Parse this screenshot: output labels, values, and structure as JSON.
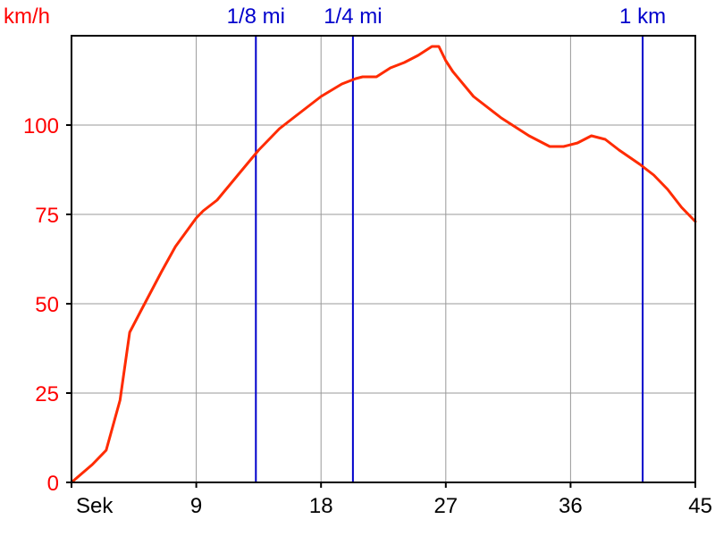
{
  "chart_data": {
    "type": "line",
    "y_unit": "km/h",
    "x_unit_label": "Sek",
    "xlim": [
      0,
      45
    ],
    "ylim": [
      0,
      125
    ],
    "x_ticks": [
      {
        "value": 0,
        "label": "Sek"
      },
      {
        "value": 9,
        "label": "9"
      },
      {
        "value": 18,
        "label": "18"
      },
      {
        "value": 27,
        "label": "27"
      },
      {
        "value": 36,
        "label": "36"
      },
      {
        "value": 45,
        "label": "45"
      }
    ],
    "y_ticks": [
      {
        "value": 0,
        "label": "0"
      },
      {
        "value": 25,
        "label": "25"
      },
      {
        "value": 50,
        "label": "50"
      },
      {
        "value": 75,
        "label": "75"
      },
      {
        "value": 100,
        "label": "100"
      }
    ],
    "grid": true,
    "series": [
      {
        "color": "#ff2b00",
        "points": [
          [
            0,
            0
          ],
          [
            1.5,
            5
          ],
          [
            2.5,
            9
          ],
          [
            3.5,
            23
          ],
          [
            4.2,
            42
          ],
          [
            5,
            48
          ],
          [
            6.5,
            59
          ],
          [
            7.5,
            66
          ],
          [
            9,
            74
          ],
          [
            9.5,
            76
          ],
          [
            10.5,
            79
          ],
          [
            12,
            86
          ],
          [
            13.5,
            93
          ],
          [
            15,
            99
          ],
          [
            16.5,
            103.5
          ],
          [
            18,
            108
          ],
          [
            19.5,
            111.5
          ],
          [
            20.5,
            113
          ],
          [
            21,
            113.5
          ],
          [
            22,
            113.5
          ],
          [
            23,
            116
          ],
          [
            24,
            117.5
          ],
          [
            25,
            119.5
          ],
          [
            26,
            122
          ],
          [
            26.5,
            122
          ],
          [
            27,
            118
          ],
          [
            27.5,
            115
          ],
          [
            29,
            108
          ],
          [
            31,
            102
          ],
          [
            33,
            97
          ],
          [
            34.5,
            94
          ],
          [
            35.5,
            94
          ],
          [
            36.5,
            95
          ],
          [
            37.5,
            97
          ],
          [
            38.5,
            96
          ],
          [
            39.5,
            93
          ],
          [
            41,
            89
          ],
          [
            42,
            86
          ],
          [
            43,
            82
          ],
          [
            44,
            77
          ],
          [
            45,
            73
          ]
        ]
      }
    ],
    "markers": [
      {
        "x": 13.3,
        "label": "1/8 mi"
      },
      {
        "x": 20.3,
        "label": "1/4 mi"
      },
      {
        "x": 41.2,
        "label": "1 km"
      }
    ]
  },
  "colors": {
    "axis_text": "#ff0000",
    "marker": "#0000cc",
    "grid": "#999999",
    "series": "#ff2b00"
  }
}
